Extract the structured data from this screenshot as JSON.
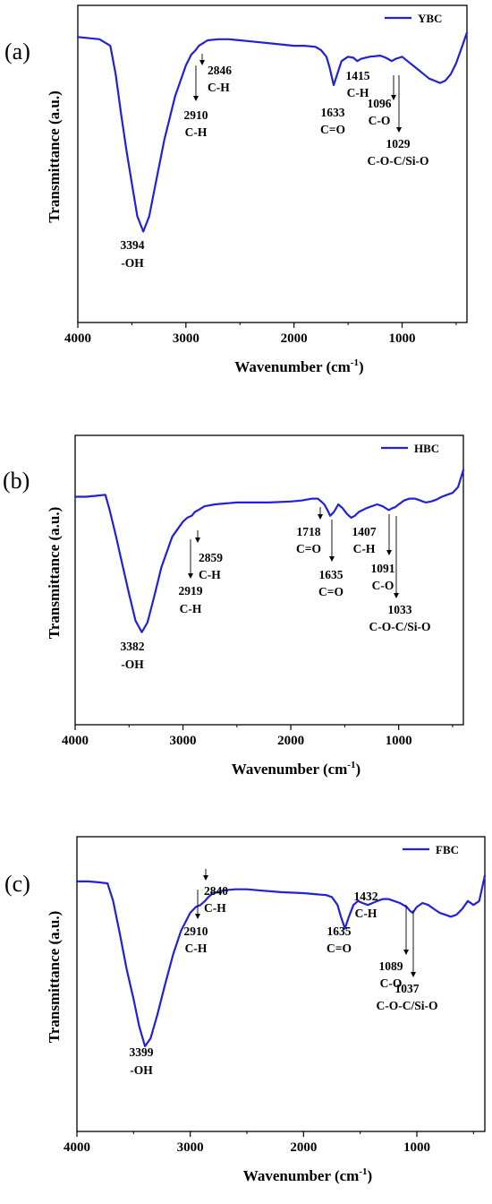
{
  "chart_data": [
    {
      "type": "line",
      "panel_label": "(a)",
      "xlabel": "Wavenumber (cm",
      "xlabel_sup": "-1",
      "xlabel_end": ")",
      "ylabel": "Transmittance (a.u.)",
      "xlim": [
        4000,
        400
      ],
      "x_reversed": true,
      "x_ticks": [
        4000,
        3000,
        2000,
        1000
      ],
      "y_units": "arbitrary (relative transmittance, 0 = lowest, 1 = highest)",
      "legend_position": "top-right",
      "series": [
        {
          "name": "YBC",
          "color": "#1f22d8",
          "x": [
            4000,
            3800,
            3700,
            3650,
            3600,
            3550,
            3500,
            3450,
            3394,
            3340,
            3280,
            3200,
            3100,
            3000,
            2950,
            2910,
            2880,
            2846,
            2800,
            2700,
            2600,
            2500,
            2400,
            2200,
            2100,
            2000,
            1900,
            1800,
            1750,
            1700,
            1670,
            1633,
            1600,
            1560,
            1500,
            1450,
            1415,
            1380,
            1300,
            1200,
            1150,
            1096,
            1060,
            1029,
            1000,
            950,
            900,
            850,
            800,
            750,
            700,
            650,
            600,
            550,
            500,
            450,
            400
          ],
          "y": [
            0.97,
            0.96,
            0.93,
            0.8,
            0.62,
            0.45,
            0.3,
            0.15,
            0.08,
            0.15,
            0.3,
            0.5,
            0.7,
            0.84,
            0.89,
            0.91,
            0.93,
            0.94,
            0.955,
            0.96,
            0.96,
            0.955,
            0.95,
            0.94,
            0.935,
            0.93,
            0.93,
            0.925,
            0.91,
            0.88,
            0.83,
            0.75,
            0.8,
            0.86,
            0.88,
            0.875,
            0.86,
            0.87,
            0.88,
            0.885,
            0.875,
            0.86,
            0.87,
            0.875,
            0.88,
            0.86,
            0.84,
            0.82,
            0.8,
            0.78,
            0.77,
            0.76,
            0.77,
            0.8,
            0.85,
            0.92,
            0.99
          ]
        }
      ],
      "annotations": [
        {
          "x": 3394,
          "y": 0.08,
          "value": "3394",
          "group": "-OH"
        },
        {
          "x": 2910,
          "y": 0.91,
          "value": "2910",
          "group": "C-H"
        },
        {
          "x": 2846,
          "y": 0.94,
          "value": "2846",
          "group": "C-H"
        },
        {
          "x": 1633,
          "y": 0.75,
          "value": "1633",
          "group": "C=O"
        },
        {
          "x": 1415,
          "y": 0.86,
          "value": "1415",
          "group": "C-H"
        },
        {
          "x": 1096,
          "y": 0.86,
          "value": "1096",
          "group": "C-O"
        },
        {
          "x": 1029,
          "y": 0.875,
          "value": "1029",
          "group": "C-O-C/Si-O"
        }
      ]
    },
    {
      "type": "line",
      "panel_label": "(b)",
      "xlabel": "Wavenumber (cm",
      "xlabel_sup": "-1",
      "xlabel_end": ")",
      "ylabel": "Transmittance (a.u.)",
      "xlim": [
        4000,
        400
      ],
      "x_reversed": true,
      "x_ticks": [
        4000,
        3000,
        2000,
        1000
      ],
      "y_units": "arbitrary (relative transmittance, 0 = lowest, 1 = highest)",
      "legend_position": "top-right",
      "series": [
        {
          "name": "HBC",
          "color": "#1f22d8",
          "x": [
            4000,
            3900,
            3800,
            3720,
            3680,
            3620,
            3560,
            3500,
            3440,
            3382,
            3330,
            3270,
            3200,
            3100,
            3000,
            2960,
            2919,
            2890,
            2859,
            2800,
            2700,
            2600,
            2500,
            2400,
            2200,
            2000,
            1900,
            1800,
            1750,
            1718,
            1690,
            1660,
            1635,
            1600,
            1560,
            1520,
            1480,
            1440,
            1407,
            1370,
            1300,
            1250,
            1200,
            1150,
            1091,
            1060,
            1033,
            1000,
            950,
            900,
            850,
            800,
            750,
            700,
            650,
            600,
            550,
            500,
            450,
            400
          ],
          "y": [
            0.81,
            0.81,
            0.815,
            0.82,
            0.74,
            0.6,
            0.45,
            0.3,
            0.16,
            0.1,
            0.15,
            0.28,
            0.44,
            0.6,
            0.68,
            0.7,
            0.71,
            0.73,
            0.74,
            0.76,
            0.77,
            0.775,
            0.78,
            0.78,
            0.78,
            0.785,
            0.79,
            0.8,
            0.8,
            0.785,
            0.77,
            0.74,
            0.71,
            0.73,
            0.77,
            0.75,
            0.72,
            0.7,
            0.71,
            0.73,
            0.75,
            0.76,
            0.77,
            0.76,
            0.74,
            0.75,
            0.755,
            0.77,
            0.79,
            0.8,
            0.8,
            0.79,
            0.78,
            0.785,
            0.795,
            0.81,
            0.82,
            0.83,
            0.86,
            0.95
          ]
        }
      ],
      "annotations": [
        {
          "x": 3382,
          "y": 0.1,
          "value": "3382",
          "group": "-OH"
        },
        {
          "x": 2919,
          "y": 0.71,
          "value": "2919",
          "group": "C-H"
        },
        {
          "x": 2859,
          "y": 0.74,
          "value": "2859",
          "group": "C-H"
        },
        {
          "x": 1718,
          "y": 0.785,
          "value": "1718",
          "group": "C=O"
        },
        {
          "x": 1635,
          "y": 0.71,
          "value": "1635",
          "group": "C=O"
        },
        {
          "x": 1407,
          "y": 0.71,
          "value": "1407",
          "group": "C-H"
        },
        {
          "x": 1091,
          "y": 0.74,
          "value": "1091",
          "group": "C-O"
        },
        {
          "x": 1033,
          "y": 0.755,
          "value": "1033",
          "group": "C-O-C/Si-O"
        }
      ]
    },
    {
      "type": "line",
      "panel_label": "(c)",
      "xlabel": "Wavenumber (cm",
      "xlabel_sup": "-1",
      "xlabel_end": ")",
      "ylabel": "Transmittance (a.u.)",
      "xlim": [
        4000,
        400
      ],
      "x_reversed": true,
      "x_ticks": [
        4000,
        3000,
        2000,
        1000
      ],
      "y_units": "arbitrary (relative transmittance, 0 = lowest, 1 = highest)",
      "legend_position": "top-right",
      "series": [
        {
          "name": "FBC",
          "color": "#1f22d8",
          "x": [
            4000,
            3900,
            3800,
            3730,
            3680,
            3620,
            3560,
            3500,
            3450,
            3399,
            3350,
            3290,
            3220,
            3150,
            3080,
            3000,
            2950,
            2910,
            2870,
            2840,
            2800,
            2700,
            2600,
            2500,
            2400,
            2200,
            2000,
            1900,
            1800,
            1750,
            1700,
            1670,
            1635,
            1600,
            1560,
            1520,
            1480,
            1432,
            1390,
            1350,
            1300,
            1250,
            1200,
            1150,
            1089,
            1060,
            1037,
            1000,
            950,
            900,
            850,
            800,
            750,
            700,
            650,
            600,
            550,
            500,
            450,
            400
          ],
          "y": [
            0.9,
            0.9,
            0.895,
            0.89,
            0.8,
            0.63,
            0.45,
            0.3,
            0.16,
            0.06,
            0.1,
            0.22,
            0.38,
            0.53,
            0.65,
            0.74,
            0.77,
            0.78,
            0.8,
            0.82,
            0.84,
            0.855,
            0.86,
            0.86,
            0.855,
            0.845,
            0.84,
            0.835,
            0.83,
            0.82,
            0.78,
            0.72,
            0.66,
            0.72,
            0.78,
            0.8,
            0.79,
            0.78,
            0.79,
            0.8,
            0.81,
            0.81,
            0.8,
            0.79,
            0.77,
            0.75,
            0.74,
            0.77,
            0.79,
            0.78,
            0.76,
            0.74,
            0.73,
            0.72,
            0.73,
            0.76,
            0.8,
            0.78,
            0.8,
            0.93
          ]
        }
      ],
      "annotations": [
        {
          "x": 3399,
          "y": 0.06,
          "value": "3399",
          "group": "-OH"
        },
        {
          "x": 2910,
          "y": 0.78,
          "value": "2910",
          "group": "C-H"
        },
        {
          "x": 2840,
          "y": 0.82,
          "value": "2840",
          "group": "C-H"
        },
        {
          "x": 1635,
          "y": 0.66,
          "value": "1635",
          "group": "C=O"
        },
        {
          "x": 1432,
          "y": 0.78,
          "value": "1432",
          "group": "C-H"
        },
        {
          "x": 1089,
          "y": 0.77,
          "value": "1089",
          "group": "C-O"
        },
        {
          "x": 1037,
          "y": 0.74,
          "value": "1037",
          "group": "C-O-C/Si-O"
        }
      ]
    }
  ]
}
